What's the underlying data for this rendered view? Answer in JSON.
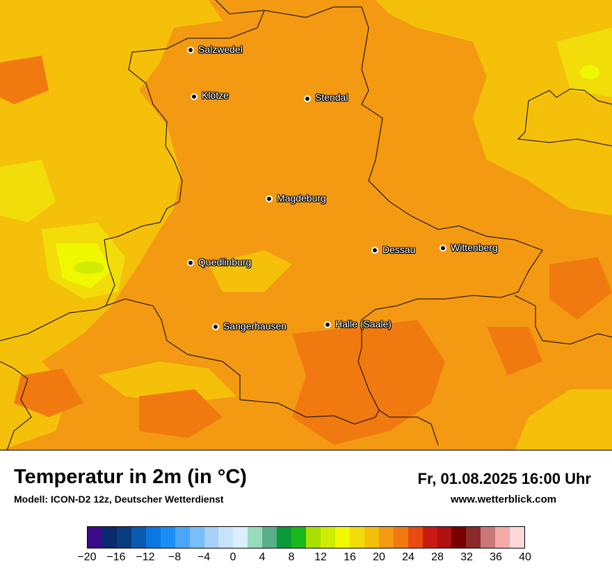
{
  "map": {
    "cities": [
      {
        "name": "Salzwedel"
      },
      {
        "name": "Klötze"
      },
      {
        "name": "Stendal"
      },
      {
        "name": "Magdeburg"
      },
      {
        "name": "Quedlinburg"
      },
      {
        "name": "Dessau"
      },
      {
        "name": "Wittenberg"
      },
      {
        "name": "Sangerhausen"
      },
      {
        "name": "Halle (Saale)"
      }
    ]
  },
  "header": {
    "title": "Temperatur in 2m (in °C)",
    "subtitle": "Modell: ICON-D2 12z, Deutscher Wetterdienst",
    "datetime": "Fr, 01.08.2025 16:00 Uhr",
    "website": "www.wetterblick.com"
  },
  "legend": {
    "colors": [
      "#3a0a8a",
      "#0a2a6e",
      "#0a3c80",
      "#0a5ab0",
      "#0a78e0",
      "#1a8ef5",
      "#4aa6f8",
      "#78bef8",
      "#a6d2fa",
      "#c8e2fc",
      "#dceefc",
      "#96dcbc",
      "#5aae8a",
      "#0a9a3a",
      "#1ab81a",
      "#a8e000",
      "#d0ec00",
      "#f0f800",
      "#f2dc0a",
      "#f5c00a",
      "#f39a12",
      "#f07a10",
      "#e84a10",
      "#c81a10",
      "#b01010",
      "#780000",
      "#8a2a2a",
      "#c87878",
      "#f5aaaa",
      "#fcd8d8"
    ],
    "ticks": [
      "−20",
      "−16",
      "−12",
      "−8",
      "−4",
      "0",
      "4",
      "8",
      "12",
      "16",
      "20",
      "24",
      "28",
      "32",
      "36",
      "40"
    ]
  }
}
